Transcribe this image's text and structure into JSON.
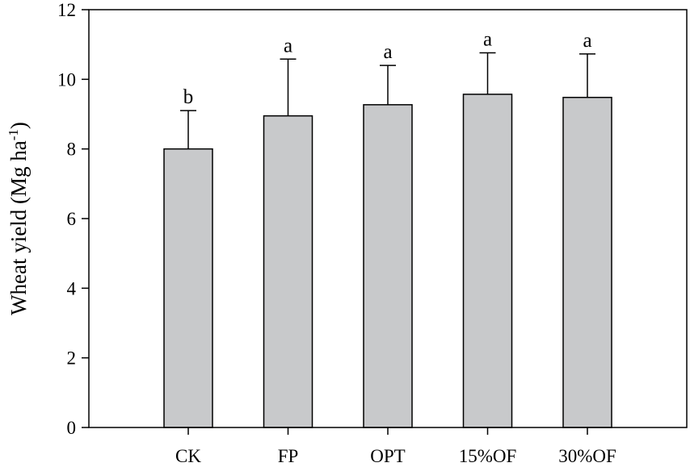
{
  "chart_data": {
    "type": "bar",
    "categories": [
      "CK",
      "FP",
      "OPT",
      "15%OF",
      "30%OF"
    ],
    "values": [
      8.0,
      8.95,
      9.27,
      9.57,
      9.48
    ],
    "error_upper": [
      9.1,
      10.58,
      10.4,
      10.76,
      10.73
    ],
    "significance": [
      "b",
      "a",
      "a",
      "a",
      "a"
    ],
    "ylabel": "Wheat yield (Mg ha",
    "ylabel_superscript": "-1",
    "ylabel_close": ")",
    "ylim": [
      0,
      12
    ],
    "yticks": [
      "0",
      "2",
      "4",
      "6",
      "8",
      "10",
      "12"
    ],
    "bar_color": "#c8c9cb",
    "grid": false
  }
}
